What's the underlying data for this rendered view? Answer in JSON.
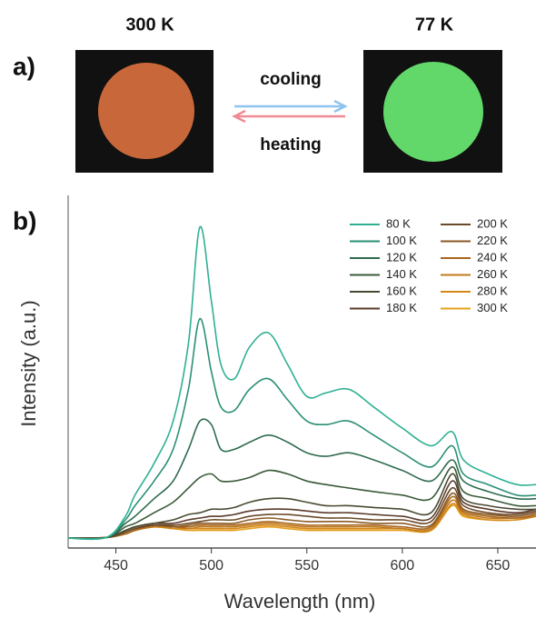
{
  "panel_a": {
    "label": "a)",
    "left_label": "300 K",
    "right_label": "77 K",
    "top_arrow": "cooling",
    "bottom_arrow": "heating"
  },
  "chart_data": {
    "type": "line",
    "panel_label": "b)",
    "xlabel": "Wavelength (nm)",
    "ylabel": "Intensity (a.u.)",
    "xlim": [
      425,
      670
    ],
    "xticks": [
      450,
      500,
      550,
      600,
      650
    ],
    "ylim": [
      0,
      100
    ],
    "legend": "upper right",
    "x": [
      425,
      445,
      455,
      460,
      470,
      480,
      488,
      494,
      500,
      505,
      512,
      520,
      530,
      540,
      550,
      560,
      572,
      585,
      600,
      615,
      626,
      632,
      645,
      660,
      670
    ],
    "series": [
      {
        "name": "80 K",
        "color": "#2fb094",
        "values": [
          2.8,
          3,
          9,
          15,
          24,
          36,
          58,
          91,
          70,
          52,
          48,
          57,
          61,
          52,
          43,
          44,
          45,
          40,
          34,
          29,
          33,
          25,
          21,
          18,
          18
        ]
      },
      {
        "name": "100 K",
        "color": "#2a8f76",
        "values": [
          2.8,
          3,
          8,
          12,
          19,
          28,
          45,
          65,
          50,
          40,
          39,
          45,
          48,
          42,
          36,
          35,
          36,
          32,
          27,
          23,
          29,
          21,
          18,
          15,
          15
        ]
      },
      {
        "name": "120 K",
        "color": "#2f6b4e",
        "values": [
          2.8,
          3,
          7,
          9,
          14,
          19,
          28,
          36,
          35,
          28,
          28,
          30,
          32,
          30,
          27,
          26,
          27,
          25,
          22,
          19,
          25,
          19,
          16,
          14,
          14
        ]
      },
      {
        "name": "140 K",
        "color": "#3a5a3a",
        "values": [
          2.8,
          3,
          6,
          7,
          10,
          13,
          17,
          20,
          21,
          19,
          19,
          20,
          22,
          21,
          19,
          18,
          17,
          16,
          15,
          14,
          23,
          16,
          14,
          12,
          12
        ]
      },
      {
        "name": "160 K",
        "color": "#4a4a33",
        "values": [
          2.8,
          3,
          5,
          6,
          7,
          8,
          9.5,
          10,
          11,
          11,
          11.5,
          13,
          14,
          14,
          13,
          12,
          12,
          11.5,
          11,
          10,
          21,
          14,
          12,
          11,
          11
        ]
      },
      {
        "name": "180 K",
        "color": "#5b3a2a",
        "values": [
          2.8,
          3,
          5,
          6,
          7,
          7,
          8,
          8.5,
          9,
          9,
          9.5,
          10.5,
          11,
          11,
          10.5,
          10,
          10,
          9.5,
          9,
          8.5,
          19,
          13,
          11,
          10,
          11
        ]
      },
      {
        "name": "200 K",
        "color": "#6b4a2a",
        "values": [
          2.8,
          3,
          4.5,
          5.5,
          6.5,
          6.5,
          7,
          7.5,
          8,
          8,
          8,
          9,
          9.5,
          9.5,
          9,
          8.5,
          8.5,
          8,
          8,
          7.5,
          17,
          12,
          10,
          9.5,
          10.5
        ]
      },
      {
        "name": "220 K",
        "color": "#8a5a25",
        "values": [
          2.8,
          3,
          4.5,
          5.5,
          6.5,
          6,
          6.5,
          7,
          7,
          7,
          7,
          8,
          8.5,
          8,
          7.5,
          7.5,
          7.5,
          7,
          7,
          6.5,
          15.5,
          11,
          9.5,
          9,
          10
        ]
      },
      {
        "name": "240 K",
        "color": "#a8661f",
        "values": [
          2.8,
          3,
          4,
          5,
          6.5,
          6,
          6,
          6.5,
          6.5,
          6.5,
          6.5,
          7,
          7.5,
          7,
          6.5,
          6.5,
          6.5,
          6.5,
          6,
          6,
          14.5,
          10.5,
          9,
          8.5,
          9.5
        ]
      },
      {
        "name": "260 K",
        "color": "#c07a1a",
        "values": [
          2.8,
          3,
          4,
          5,
          6,
          6,
          5.5,
          6,
          6,
          6,
          6,
          6.5,
          7,
          6.5,
          6,
          6,
          6,
          6,
          5.5,
          5.5,
          13.5,
          10,
          8.5,
          8.5,
          9
        ]
      },
      {
        "name": "280 K",
        "color": "#d4881a",
        "values": [
          2.8,
          3,
          4,
          5,
          6,
          5.5,
          5.5,
          5.5,
          5.5,
          5.5,
          5.5,
          6,
          6.5,
          6,
          5.5,
          5.5,
          5.5,
          5.5,
          5.5,
          5,
          12.5,
          9.5,
          8,
          8,
          9
        ]
      },
      {
        "name": "300 K",
        "color": "#e6a01e",
        "values": [
          2.8,
          3,
          4,
          5,
          6,
          5.5,
          5,
          5,
          5,
          5,
          5,
          5.5,
          6,
          5.5,
          5,
          5,
          5,
          5,
          5,
          5,
          12,
          9,
          8,
          8,
          9
        ]
      }
    ]
  }
}
